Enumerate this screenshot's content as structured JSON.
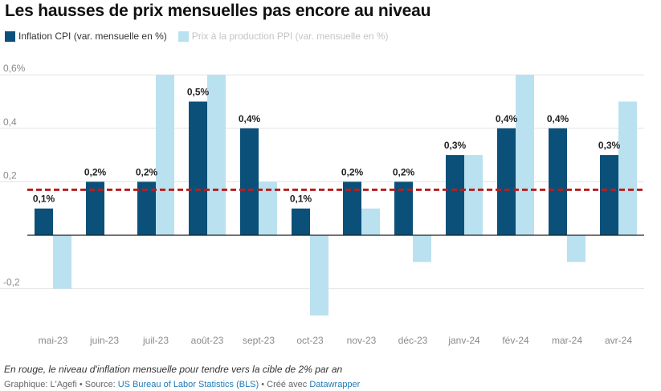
{
  "title": "Les hausses de prix mensuelles pas encore au niveau",
  "legend": {
    "cpi_label": "Inflation CPI (var. mensuelle en %)",
    "ppi_label": "Prix à la production PPI (var. mensuelle en %)"
  },
  "note": "En rouge, le niveau d'inflation mensuelle pour tendre vers la cible de 2% par an",
  "footer": {
    "graphic": "Graphique: L'Agefi",
    "sep1": " • ",
    "source_prefix": "Source: ",
    "source_link": "US Bureau of Labor Statistics (BLS)",
    "sep2": " • ",
    "created_prefix": "Créé avec ",
    "created_link": "Datawrapper"
  },
  "colors": {
    "cpi": "#0b5079",
    "ppi": "#b9e1f0",
    "target": "#b71f1f",
    "grid": "#e3e3e3",
    "axis": "#222222"
  },
  "chart_data": {
    "type": "bar",
    "categories": [
      "mai-23",
      "juin-23",
      "juil-23",
      "août-23",
      "sept-23",
      "oct-23",
      "nov-23",
      "déc-23",
      "janv-24",
      "févr-24",
      "mar-24",
      "avr-24"
    ],
    "category_labels": [
      "mai-23",
      "juin-23",
      "juil-23",
      "août-23",
      "sept-23",
      "oct-23",
      "nov-23",
      "déc-23",
      "janv-24",
      "fév-24",
      "mar-24",
      "avr-24"
    ],
    "series": [
      {
        "name": "Inflation CPI (var. mensuelle en %)",
        "values": [
          0.1,
          0.2,
          0.2,
          0.5,
          0.4,
          0.1,
          0.2,
          0.2,
          0.3,
          0.4,
          0.4,
          0.3
        ],
        "labels": [
          "0,1%",
          "0,2%",
          "0,2%",
          "0,5%",
          "0,4%",
          "0,1%",
          "0,2%",
          "0,2%",
          "0,3%",
          "0,4%",
          "0,4%",
          "0,3%"
        ]
      },
      {
        "name": "Prix à la production PPI (var. mensuelle en %)",
        "values": [
          -0.2,
          0,
          0.6,
          0.6,
          0.2,
          -0.3,
          0.1,
          -0.1,
          0.3,
          0.6,
          -0.1,
          0.5
        ]
      }
    ],
    "reference_line": {
      "value": 0.17
    },
    "y_ticks": [
      0.6,
      0.4,
      0.2,
      -0.2
    ],
    "y_tick_labels": [
      "0,6%",
      "0,4",
      "0,2",
      "-0,2"
    ],
    "ylim": [
      -0.3,
      0.6
    ],
    "grid": true,
    "legend_position": "top-left"
  }
}
